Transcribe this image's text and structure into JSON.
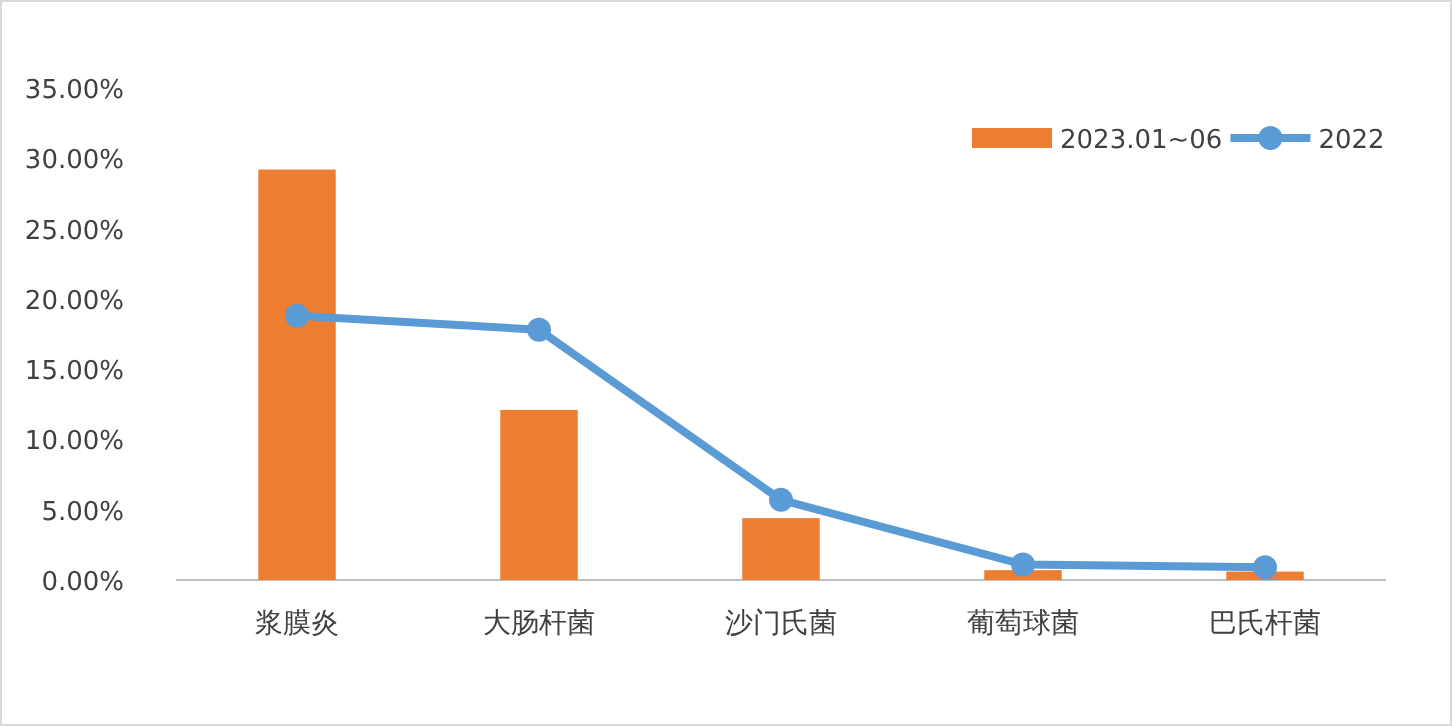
{
  "chart_data": {
    "type": "bar",
    "categories": [
      "浆膜炎",
      "大肠杆菌",
      "沙门氏菌",
      "葡萄球菌",
      "巴氏杆菌"
    ],
    "series": [
      {
        "name": "2023.01~06",
        "color": "#ed7d31",
        "values": [
          29.2,
          12.1,
          4.4,
          0.7,
          0.6
        ]
      },
      {
        "name": "2022",
        "type": "line",
        "color": "#5b9bd5",
        "values": [
          18.8,
          17.8,
          5.7,
          1.1,
          0.9
        ]
      }
    ],
    "ylim": [
      0,
      35
    ],
    "yticks": [
      {
        "value": 0,
        "label": "0.00%"
      },
      {
        "value": 5,
        "label": "5.00%"
      },
      {
        "value": 10,
        "label": "10.00%"
      },
      {
        "value": 15,
        "label": "15.00%"
      },
      {
        "value": 20,
        "label": "20.00%"
      },
      {
        "value": 25,
        "label": "25.00%"
      },
      {
        "value": 30,
        "label": "30.00%"
      },
      {
        "value": 35,
        "label": "35.00%"
      }
    ],
    "grid": false,
    "legend": "top right",
    "marker": "circle",
    "line_style": "solid"
  }
}
